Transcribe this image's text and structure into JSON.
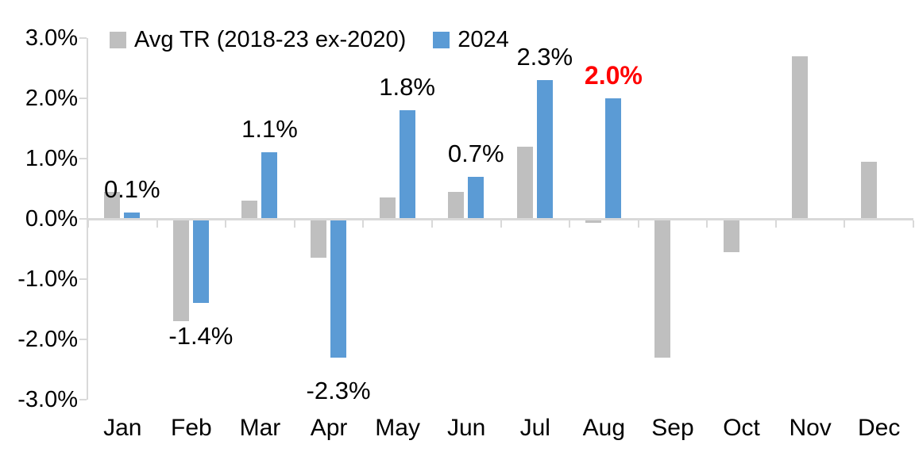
{
  "chart_data": {
    "type": "bar",
    "title": "",
    "xlabel": "",
    "ylabel": "",
    "categories": [
      "Jan",
      "Feb",
      "Mar",
      "Apr",
      "May",
      "Jun",
      "Jul",
      "Aug",
      "Sep",
      "Oct",
      "Nov",
      "Dec"
    ],
    "series": [
      {
        "name": "Avg TR (2018-23 ex-2020)",
        "color": "#BFBFBF",
        "values": [
          0.45,
          -1.7,
          0.3,
          -0.65,
          0.35,
          0.45,
          1.2,
          -0.07,
          -2.3,
          -0.55,
          2.7,
          0.95
        ]
      },
      {
        "name": "2024",
        "color": "#5B9BD5",
        "values": [
          0.1,
          -1.4,
          1.1,
          -2.3,
          1.8,
          0.7,
          2.3,
          2.0,
          null,
          null,
          null,
          null
        ],
        "data_labels": [
          {
            "text": "0.1%",
            "highlight": false
          },
          {
            "text": "-1.4%",
            "highlight": false
          },
          {
            "text": "1.1%",
            "highlight": false
          },
          {
            "text": "-2.3%",
            "highlight": false
          },
          {
            "text": "1.8%",
            "highlight": false
          },
          {
            "text": "0.7%",
            "highlight": false
          },
          {
            "text": "2.3%",
            "highlight": false
          },
          {
            "text": "2.0%",
            "highlight": true
          },
          null,
          null,
          null,
          null
        ]
      }
    ],
    "ylim": [
      -3,
      3
    ],
    "yticks": [
      {
        "value": 3,
        "label": "3.0%"
      },
      {
        "value": 2,
        "label": "2.0%"
      },
      {
        "value": 1,
        "label": "1.0%"
      },
      {
        "value": 0,
        "label": "0.0%"
      },
      {
        "value": -1,
        "label": "-1.0%"
      },
      {
        "value": -2,
        "label": "-2.0%"
      },
      {
        "value": -3,
        "label": "-3.0%"
      }
    ],
    "grid": false,
    "legend_position": "top",
    "colors": {
      "axis": "#D9D9D9",
      "text": "#000000",
      "highlight_label": "#FF0000",
      "background": "#FFFFFF"
    }
  }
}
